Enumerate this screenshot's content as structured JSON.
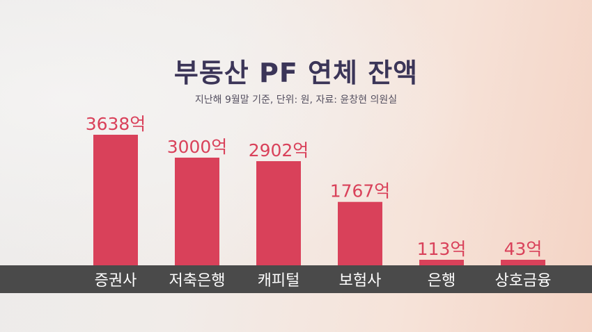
{
  "header": {
    "title": "부동산 PF 연체 잔액",
    "subtitle": "지난해 9월말 기준, 단위: 원, 자료: 윤창현 의원실"
  },
  "colors": {
    "bar": "#d9415a",
    "value_label": "#d9415a",
    "title": "#3b3558",
    "band": "#4a4a4a",
    "category_label": "#ffffff"
  },
  "chart_data": {
    "type": "bar",
    "title": "부동산 PF 연체 잔액",
    "subtitle": "지난해 9월말 기준, 단위: 원, 자료: 윤창현 의원실",
    "categories": [
      "증권사",
      "저축은행",
      "캐피털",
      "보험사",
      "은행",
      "상호금융"
    ],
    "values": [
      3638,
      3000,
      2902,
      1767,
      113,
      43
    ],
    "value_labels": [
      "3638억",
      "3000억",
      "2902억",
      "1767억",
      "113억",
      "43억"
    ],
    "unit": "억",
    "ylim": [
      0,
      3638
    ],
    "grid": false,
    "legend": "none"
  }
}
